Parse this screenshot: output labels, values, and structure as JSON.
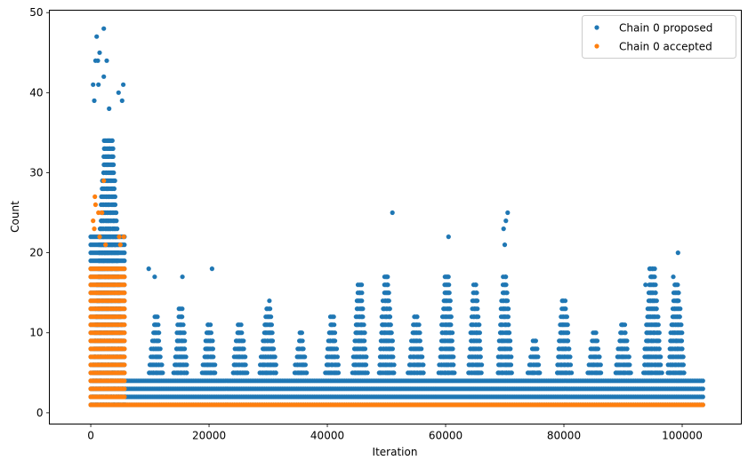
{
  "chart_data": {
    "type": "scatter",
    "xlabel": "Iteration",
    "ylabel": "Count",
    "xlim": [
      -7000,
      110000
    ],
    "ylim": [
      -1.4,
      50.3
    ],
    "xticks": [
      0,
      20000,
      40000,
      60000,
      80000,
      100000
    ],
    "yticks": [
      0,
      10,
      20,
      30,
      40,
      50
    ],
    "grid": false,
    "legend": "top-right",
    "series": [
      {
        "name": "Chain 0 proposed",
        "color": "#1f77b4",
        "band": {
          "x_start": 0,
          "x_end": 103500,
          "step": 300,
          "y_min": 1,
          "y_max_profile": [
            [
              0,
              22
            ],
            [
              6000,
              22
            ],
            [
              6000,
              4
            ],
            [
              103500,
              4
            ]
          ]
        },
        "clusters": [
          {
            "x_center": 3000,
            "x_width": 6000,
            "y_from": 1,
            "y_to": 34
          },
          {
            "x_center": 11000,
            "x_width": 2400,
            "y_from": 5,
            "y_to": 12
          },
          {
            "x_center": 15200,
            "x_width": 2400,
            "y_from": 5,
            "y_to": 13
          },
          {
            "x_center": 20000,
            "x_width": 2400,
            "y_from": 5,
            "y_to": 11
          },
          {
            "x_center": 25200,
            "x_width": 2600,
            "y_from": 5,
            "y_to": 11
          },
          {
            "x_center": 30000,
            "x_width": 3000,
            "y_from": 5,
            "y_to": 13
          },
          {
            "x_center": 35500,
            "x_width": 2200,
            "y_from": 5,
            "y_to": 10
          },
          {
            "x_center": 40800,
            "x_width": 2400,
            "y_from": 5,
            "y_to": 12
          },
          {
            "x_center": 45500,
            "x_width": 2600,
            "y_from": 5,
            "y_to": 16
          },
          {
            "x_center": 50000,
            "x_width": 2800,
            "y_from": 5,
            "y_to": 17
          },
          {
            "x_center": 55000,
            "x_width": 2800,
            "y_from": 5,
            "y_to": 12
          },
          {
            "x_center": 60200,
            "x_width": 2800,
            "y_from": 5,
            "y_to": 17
          },
          {
            "x_center": 65000,
            "x_width": 2400,
            "y_from": 5,
            "y_to": 16
          },
          {
            "x_center": 70000,
            "x_width": 2600,
            "y_from": 5,
            "y_to": 17
          },
          {
            "x_center": 75000,
            "x_width": 2200,
            "y_from": 5,
            "y_to": 9
          },
          {
            "x_center": 80000,
            "x_width": 2600,
            "y_from": 5,
            "y_to": 14
          },
          {
            "x_center": 85200,
            "x_width": 2400,
            "y_from": 5,
            "y_to": 10
          },
          {
            "x_center": 90000,
            "x_width": 2800,
            "y_from": 5,
            "y_to": 11
          },
          {
            "x_center": 95000,
            "x_width": 3200,
            "y_from": 5,
            "y_to": 18
          },
          {
            "x_center": 99000,
            "x_width": 3000,
            "y_from": 5,
            "y_to": 16
          }
        ],
        "outliers": [
          [
            1000,
            47
          ],
          [
            2200,
            48
          ],
          [
            1500,
            45
          ],
          [
            800,
            44
          ],
          [
            1200,
            44
          ],
          [
            2700,
            44
          ],
          [
            400,
            41
          ],
          [
            1300,
            41
          ],
          [
            4700,
            40
          ],
          [
            5500,
            41
          ],
          [
            2200,
            42
          ],
          [
            5300,
            39
          ],
          [
            600,
            39
          ],
          [
            3100,
            38
          ],
          [
            9800,
            18
          ],
          [
            10800,
            17
          ],
          [
            15500,
            17
          ],
          [
            20500,
            18
          ],
          [
            30200,
            14
          ],
          [
            51000,
            25
          ],
          [
            60500,
            22
          ],
          [
            69800,
            23
          ],
          [
            70500,
            25
          ],
          [
            70200,
            24
          ],
          [
            70000,
            21
          ],
          [
            94500,
            18
          ],
          [
            99300,
            20
          ],
          [
            98500,
            17
          ],
          [
            93800,
            16
          ]
        ]
      },
      {
        "name": "Chain 0 accepted",
        "color": "#ff7f0e",
        "band": {
          "x_start": 0,
          "x_end": 103500,
          "step": 300,
          "y_min": 1,
          "y_max_profile": [
            [
              0,
              18
            ],
            [
              6000,
              18
            ],
            [
              6000,
              1
            ],
            [
              103500,
              1
            ]
          ]
        },
        "outliers": [
          [
            2200,
            29
          ],
          [
            700,
            27
          ],
          [
            800,
            26
          ],
          [
            1300,
            25
          ],
          [
            1900,
            25
          ],
          [
            400,
            24
          ],
          [
            600,
            23
          ],
          [
            4800,
            22
          ],
          [
            5600,
            22
          ],
          [
            5000,
            21
          ],
          [
            1500,
            22
          ],
          [
            2500,
            21
          ]
        ]
      }
    ]
  },
  "legend": {
    "items": [
      {
        "label": "Chain 0 proposed",
        "color": "#1f77b4"
      },
      {
        "label": "Chain 0 accepted",
        "color": "#ff7f0e"
      }
    ]
  },
  "axes": {
    "xlabel": "Iteration",
    "ylabel": "Count"
  }
}
